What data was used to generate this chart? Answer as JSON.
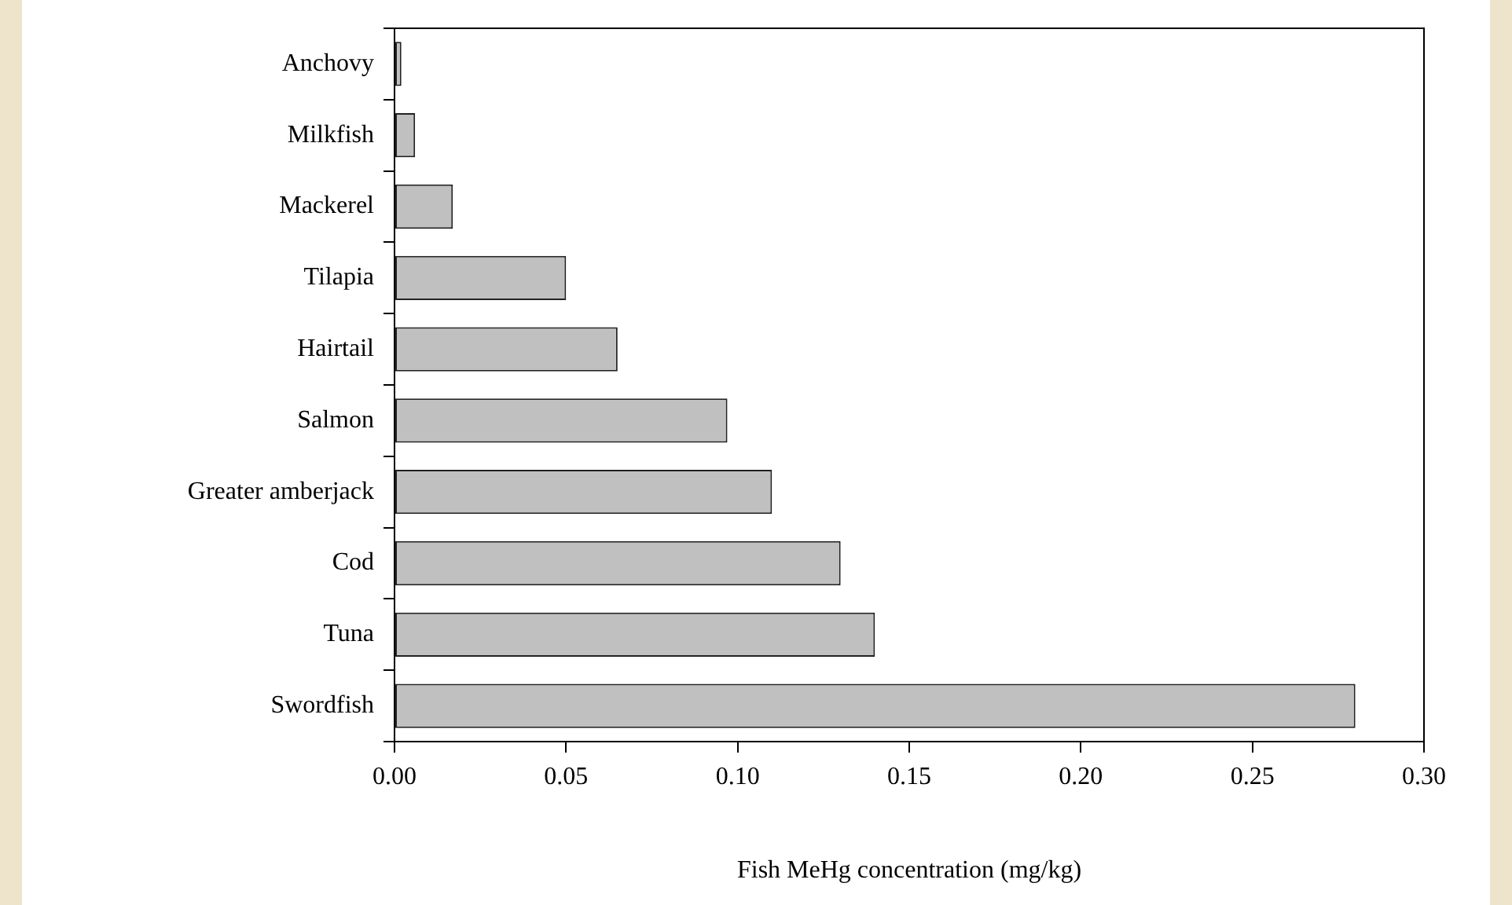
{
  "chart_data": {
    "type": "bar",
    "orientation": "horizontal",
    "xlabel": "Fish MeHg concentration (mg/kg)",
    "categories": [
      "Anchovy",
      "Milkfish",
      "Mackerel",
      "Tilapia",
      "Hairtail",
      "Salmon",
      "Greater amberjack",
      "Cod",
      "Tuna",
      "Swordfish"
    ],
    "values": [
      0.002,
      0.006,
      0.017,
      0.05,
      0.065,
      0.097,
      0.11,
      0.13,
      0.14,
      0.28
    ],
    "color": "#c0c0c0",
    "xlim": [
      0,
      0.3
    ],
    "xticks": [
      {
        "value": 0,
        "label": "0.00"
      },
      {
        "value": 0.05,
        "label": "0.05"
      },
      {
        "value": 0.1,
        "label": "0.10"
      },
      {
        "value": 0.15,
        "label": "0.15"
      },
      {
        "value": 0.2,
        "label": "0.20"
      },
      {
        "value": 0.25,
        "label": "0.25"
      },
      {
        "value": 0.3,
        "label": "0.30"
      }
    ],
    "grid": false,
    "legend": false
  }
}
